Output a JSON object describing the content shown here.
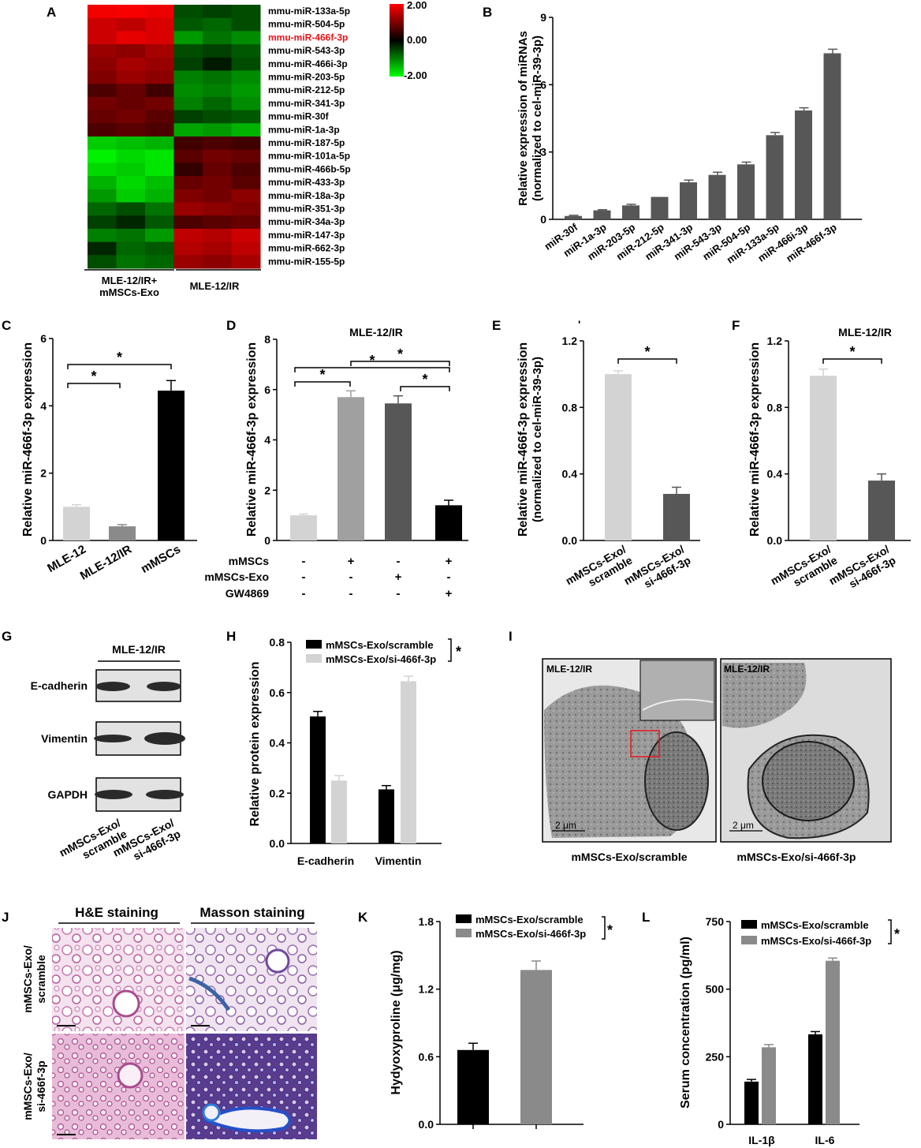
{
  "panels": {
    "A": "A",
    "B": "B",
    "C": "C",
    "D": "D",
    "E": "E",
    "F": "F",
    "G": "G",
    "H": "H",
    "I": "I",
    "J": "J",
    "K": "K",
    "L": "L"
  },
  "colors": {
    "black": "#000000",
    "dark": "#575757",
    "mid": "#8a8a8a",
    "light": "#d3d3d3",
    "highlight": "#e8141b"
  },
  "heatmap": {
    "rows": [
      "mmu-miR-133a-5p",
      "mmu-miR-504-5p",
      "mmu-miR-466f-3p",
      "mmu-miR-543-3p",
      "mmu-miR-466i-3p",
      "mmu-miR-203-5p",
      "mmu-miR-212-5p",
      "mmu-miR-341-3p",
      "mmu-miR-30f",
      "mmu-miR-1a-3p",
      "mmu-miR-187-5p",
      "mmu-miR-101a-5p",
      "mmu-miR-466b-5p",
      "mmu-miR-433-3p",
      "mmu-miR-18a-3p",
      "mmu-miR-351-3p",
      "mmu-miR-34a-3p",
      "mmu-miR-147-3p",
      "mmu-miR-662-3p",
      "mmu-miR-155-5p"
    ],
    "highlight_row": 2,
    "group1": "MLE-12/IR+\nmMSCs-Exo",
    "group1_lines": [
      "MLE-12/IR+",
      "mMSCs-Exo"
    ],
    "group2": "MLE-12/IR",
    "scale_labels": [
      "2.00",
      "0.00",
      "-2.00"
    ],
    "values": [
      [
        1.9,
        1.95,
        1.85,
        -0.6,
        -0.5,
        -0.6
      ],
      [
        1.6,
        1.5,
        1.7,
        -0.7,
        -0.8,
        -0.6
      ],
      [
        1.6,
        1.8,
        1.7,
        -1.2,
        -0.9,
        -1.1
      ],
      [
        1.2,
        1.1,
        1.3,
        -0.6,
        -0.5,
        -0.7
      ],
      [
        1.1,
        1.3,
        1.2,
        -0.5,
        -0.2,
        -0.6
      ],
      [
        1.0,
        1.2,
        1.1,
        -1.0,
        -0.9,
        -1.1
      ],
      [
        0.6,
        0.8,
        0.5,
        -1.1,
        -1.0,
        -1.2
      ],
      [
        0.9,
        0.8,
        0.9,
        -1.0,
        -0.8,
        -1.1
      ],
      [
        0.8,
        0.9,
        0.7,
        -0.5,
        -0.6,
        -0.7
      ],
      [
        0.6,
        0.7,
        0.6,
        -1.3,
        -1.2,
        -1.4
      ],
      [
        -1.6,
        -1.5,
        -1.4,
        0.5,
        0.6,
        0.5
      ],
      [
        -1.9,
        -1.7,
        -1.8,
        0.7,
        0.9,
        0.8
      ],
      [
        -1.7,
        -1.6,
        -1.8,
        0.4,
        0.8,
        0.6
      ],
      [
        -1.4,
        -1.7,
        -1.5,
        0.8,
        0.9,
        0.7
      ],
      [
        -1.2,
        -1.6,
        -1.4,
        1.0,
        0.9,
        1.1
      ],
      [
        -0.8,
        -0.6,
        -0.9,
        1.2,
        1.1,
        1.0
      ],
      [
        -0.5,
        -0.3,
        -0.7,
        0.6,
        0.7,
        0.8
      ],
      [
        -1.0,
        -0.9,
        -1.2,
        1.5,
        1.4,
        1.6
      ],
      [
        -0.3,
        -0.8,
        -0.7,
        1.4,
        1.3,
        1.5
      ],
      [
        -0.6,
        -0.9,
        -0.8,
        1.2,
        1.1,
        1.3
      ]
    ]
  },
  "chart_B": {
    "type": "bar",
    "ylabel": "Relative expression of miRNAs",
    "ylabel2": "(normalized to cel-miR-39-3p)",
    "categories": [
      "miR-30f",
      "miR-1a-3p",
      "miR-203-5p",
      "miR-212-5p",
      "miR-341-3p",
      "miR-543-3p",
      "miR-504-5p",
      "miR-133a-5p",
      "miR-466i-3p",
      "miR-466f-3p"
    ],
    "values": [
      0.15,
      0.4,
      0.62,
      1.0,
      1.65,
      1.98,
      2.45,
      3.75,
      4.85,
      7.4
    ],
    "errors": [
      0.03,
      0.03,
      0.05,
      0.0,
      0.1,
      0.12,
      0.1,
      0.12,
      0.12,
      0.18
    ],
    "ylim": [
      0,
      9
    ],
    "yticks": [
      "0",
      "3",
      "6",
      "9"
    ]
  },
  "chart_C": {
    "type": "bar",
    "ylabel": "Relative miR-466f-3p expression",
    "categories": [
      "MLE-12",
      "MLE-12/IR",
      "mMSCs"
    ],
    "values": [
      1.0,
      0.42,
      4.45
    ],
    "errors": [
      0.06,
      0.05,
      0.3
    ],
    "ylim": [
      0,
      6
    ],
    "yticks": [
      "0",
      "2",
      "4",
      "6"
    ],
    "sig": [
      "*",
      "*"
    ]
  },
  "chart_D": {
    "type": "bar",
    "title": "MLE-12/IR",
    "ylabel": "Relative miR-466f-3p expression",
    "values": [
      1.0,
      5.7,
      5.45,
      1.4
    ],
    "errors": [
      0.05,
      0.25,
      0.3,
      0.2
    ],
    "ylim": [
      0,
      8
    ],
    "yticks": [
      "0",
      "2",
      "4",
      "6",
      "8"
    ],
    "row_labels": [
      "mMSCs",
      "mMSCs-Exo",
      "GW4869"
    ],
    "marks": [
      [
        "-",
        "+",
        "-",
        "+"
      ],
      [
        "-",
        "-",
        "+",
        "-"
      ],
      [
        "-",
        "-",
        "-",
        "+"
      ]
    ],
    "sig": [
      "*",
      "*",
      "*",
      "*"
    ]
  },
  "chart_E": {
    "type": "bar",
    "ylabel": "Relative miR-466f-3p expression",
    "ylabel2": "(normalized to cel-miR-39-3p)",
    "tickmark": "'",
    "categories": [
      [
        "mMSCs-Exo/",
        "scramble"
      ],
      [
        "mMSCs-Exo/",
        "si-466f-3p"
      ]
    ],
    "values": [
      1.0,
      0.28
    ],
    "errors": [
      0.02,
      0.04
    ],
    "ylim": [
      0,
      1.2
    ],
    "yticks": [
      "0.0",
      "0.4",
      "0.8",
      "1.2"
    ],
    "sig": "*"
  },
  "chart_F": {
    "type": "bar",
    "title": "MLE-12/IR",
    "ylabel": "Relative miR-466f-3p expression",
    "categories": [
      [
        "mMSCs-Exo/",
        "scramble"
      ],
      [
        "mMSCs-Exo/",
        "si-466f-3p"
      ]
    ],
    "values": [
      0.99,
      0.36
    ],
    "errors": [
      0.04,
      0.04
    ],
    "ylim": [
      0,
      1.2
    ],
    "yticks": [
      "0.0",
      "0.4",
      "0.8",
      "1.2"
    ],
    "sig": "*"
  },
  "blot_G": {
    "title": "MLE-12/IR",
    "rows": [
      "E-cadherin",
      "Vimentin",
      "GAPDH"
    ],
    "lanes": [
      [
        "mMSCs-Exo/",
        "scramble"
      ],
      [
        "mMSCs-Exo/",
        "si-466f-3p"
      ]
    ]
  },
  "chart_H": {
    "type": "bar",
    "ylabel": "Relative protein expression",
    "categories": [
      "E-cadherin",
      "Vimentin"
    ],
    "series": [
      {
        "name": "mMSCs-Exo/scramble",
        "values": [
          0.505,
          0.215
        ],
        "errors": [
          0.02,
          0.015
        ]
      },
      {
        "name": "mMSCs-Exo/si-466f-3p",
        "values": [
          0.25,
          0.645
        ],
        "errors": [
          0.02,
          0.02
        ]
      }
    ],
    "ylim": [
      0,
      0.8
    ],
    "yticks": [
      "0.0",
      "0.2",
      "0.4",
      "0.6",
      "0.8"
    ],
    "sig": "*"
  },
  "panel_I": {
    "tag1": "MLE-12/IR",
    "tag2": "MLE-12/IR",
    "scale1": "2 μm",
    "scale2": "2 μm",
    "caption1": "mMSCs-Exo/scramble",
    "caption2": "mMSCs-Exo/si-466f-3p"
  },
  "panel_J": {
    "col1": "H&E staining",
    "col2": "Masson staining",
    "row1": [
      "mMSCs-Exo/",
      "scramble"
    ],
    "row2": [
      "mMSCs-Exo/",
      "si-466f-3p"
    ]
  },
  "chart_K": {
    "type": "bar",
    "ylabel": "Hydyoxyproline (μg/mg)",
    "series": [
      {
        "name": "mMSCs-Exo/scramble",
        "value": 0.66,
        "error": 0.06
      },
      {
        "name": "mMSCs-Exo/si-466f-3p",
        "value": 1.37,
        "error": 0.08
      }
    ],
    "ylim": [
      0,
      1.8
    ],
    "yticks": [
      "0.0",
      "0.6",
      "1.2",
      "1.8"
    ],
    "sig": "*"
  },
  "chart_L": {
    "type": "bar",
    "ylabel": "Serum concentration (pg/ml)",
    "categories": [
      "IL-1β",
      "IL-6"
    ],
    "series": [
      {
        "name": "mMSCs-Exo/scramble",
        "values": [
          158,
          333
        ],
        "errors": [
          8,
          10
        ]
      },
      {
        "name": "mMSCs-Exo/si-466f-3p",
        "values": [
          285,
          605
        ],
        "errors": [
          10,
          10
        ]
      }
    ],
    "ylim": [
      0,
      750
    ],
    "yticks": [
      "0",
      "250",
      "500",
      "750"
    ],
    "sig": "*"
  }
}
